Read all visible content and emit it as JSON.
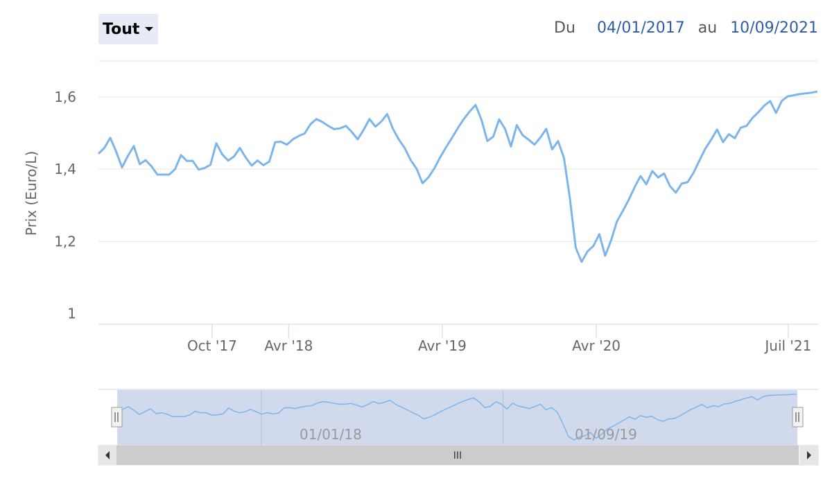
{
  "range_selector": {
    "label": "Tout"
  },
  "date_range": {
    "from_label": "Du",
    "from": "04/01/2017",
    "to_label": "au",
    "to": "10/09/2021"
  },
  "navigator": {
    "scrollbar_grip": "III",
    "labels": [
      "01/01/18",
      "01/09/19"
    ]
  },
  "colors": {
    "line": "#7cb5ec",
    "navigator_fill": "#ccd6eb",
    "grid": "#e6e6e6",
    "date": "#2e5da8"
  },
  "chart_data": {
    "type": "line",
    "title": "",
    "xlabel": "",
    "ylabel": "Prix (Euro/L)",
    "xlim": [
      "2017-01-04",
      "2021-09-10"
    ],
    "ylim": [
      0.97,
      1.7
    ],
    "y_ticks": [
      1,
      1.2,
      1.4,
      1.6
    ],
    "y_tick_labels": [
      "1",
      "1,2",
      "1,4",
      "1,6"
    ],
    "x_ticks": [
      "2017-10-01",
      "2018-04-01",
      "2019-04-01",
      "2020-04-01",
      "2021-07-01"
    ],
    "x_tick_labels": [
      "Oct '17",
      "Avr '18",
      "Avr '19",
      "Avr '20",
      "Juil '21"
    ],
    "grid": true,
    "legend": "none",
    "series": [
      {
        "x": [
          "2017-01-04",
          "2017-01-18",
          "2017-02-01",
          "2017-02-15",
          "2017-03-01",
          "2017-03-15",
          "2017-03-29",
          "2017-04-12",
          "2017-04-26",
          "2017-05-10",
          "2017-05-24",
          "2017-06-07",
          "2017-06-21",
          "2017-07-05",
          "2017-07-19",
          "2017-08-02",
          "2017-08-16",
          "2017-08-30",
          "2017-09-13",
          "2017-09-27",
          "2017-10-11",
          "2017-10-25",
          "2017-11-08",
          "2017-11-22",
          "2017-12-06",
          "2017-12-20",
          "2018-01-03",
          "2018-01-17",
          "2018-01-31",
          "2018-02-14",
          "2018-02-28",
          "2018-03-14",
          "2018-03-28",
          "2018-04-11",
          "2018-04-25",
          "2018-05-09",
          "2018-05-23",
          "2018-06-06",
          "2018-06-20",
          "2018-07-04",
          "2018-07-18",
          "2018-08-01",
          "2018-08-15",
          "2018-08-29",
          "2018-09-12",
          "2018-09-26",
          "2018-10-10",
          "2018-10-24",
          "2018-11-07",
          "2018-11-21",
          "2018-12-05",
          "2018-12-19",
          "2019-01-02",
          "2019-01-16",
          "2019-01-30",
          "2019-02-13",
          "2019-02-27",
          "2019-03-13",
          "2019-03-27",
          "2019-04-10",
          "2019-04-24",
          "2019-05-08",
          "2019-05-22",
          "2019-06-05",
          "2019-06-19",
          "2019-07-03",
          "2019-07-17",
          "2019-07-31",
          "2019-08-14",
          "2019-08-28",
          "2019-09-11",
          "2019-09-25",
          "2019-10-09",
          "2019-10-23",
          "2019-11-06",
          "2019-11-20",
          "2019-12-04",
          "2019-12-18",
          "2020-01-01",
          "2020-01-15",
          "2020-01-29",
          "2020-02-12",
          "2020-02-26",
          "2020-03-11",
          "2020-03-25",
          "2020-04-08",
          "2020-04-22",
          "2020-05-06",
          "2020-05-20",
          "2020-06-03",
          "2020-06-17",
          "2020-07-01",
          "2020-07-15",
          "2020-07-29",
          "2020-08-12",
          "2020-08-26",
          "2020-09-09",
          "2020-09-23",
          "2020-10-07",
          "2020-10-21",
          "2020-11-04",
          "2020-11-18",
          "2020-12-02",
          "2020-12-16",
          "2020-12-30",
          "2021-01-13",
          "2021-01-27",
          "2021-02-10",
          "2021-02-24",
          "2021-03-10",
          "2021-03-24",
          "2021-04-07",
          "2021-04-21",
          "2021-05-05",
          "2021-05-19",
          "2021-06-02",
          "2021-06-16",
          "2021-06-30",
          "2021-07-14",
          "2021-07-28",
          "2021-08-11",
          "2021-08-25",
          "2021-09-08"
        ],
        "values": [
          1.443,
          1.459,
          1.487,
          1.449,
          1.405,
          1.437,
          1.464,
          1.414,
          1.425,
          1.408,
          1.385,
          1.385,
          1.385,
          1.4,
          1.439,
          1.423,
          1.423,
          1.399,
          1.403,
          1.412,
          1.472,
          1.441,
          1.424,
          1.435,
          1.459,
          1.432,
          1.41,
          1.424,
          1.411,
          1.421,
          1.475,
          1.476,
          1.468,
          1.483,
          1.492,
          1.499,
          1.525,
          1.539,
          1.531,
          1.52,
          1.511,
          1.513,
          1.52,
          1.503,
          1.483,
          1.509,
          1.539,
          1.518,
          1.532,
          1.553,
          1.511,
          1.482,
          1.458,
          1.425,
          1.401,
          1.361,
          1.377,
          1.402,
          1.433,
          1.461,
          1.487,
          1.514,
          1.539,
          1.56,
          1.578,
          1.537,
          1.478,
          1.49,
          1.538,
          1.512,
          1.463,
          1.522,
          1.494,
          1.482,
          1.468,
          1.488,
          1.512,
          1.455,
          1.478,
          1.431,
          1.32,
          1.182,
          1.143,
          1.172,
          1.187,
          1.22,
          1.16,
          1.202,
          1.255,
          1.284,
          1.315,
          1.35,
          1.381,
          1.358,
          1.395,
          1.377,
          1.388,
          1.353,
          1.335,
          1.36,
          1.364,
          1.39,
          1.424,
          1.457,
          1.482,
          1.51,
          1.475,
          1.497,
          1.486,
          1.515,
          1.52,
          1.542,
          1.558,
          1.576,
          1.589,
          1.556,
          1.59,
          1.602,
          1.605,
          1.608,
          1.61,
          1.612,
          1.615
        ]
      }
    ]
  }
}
